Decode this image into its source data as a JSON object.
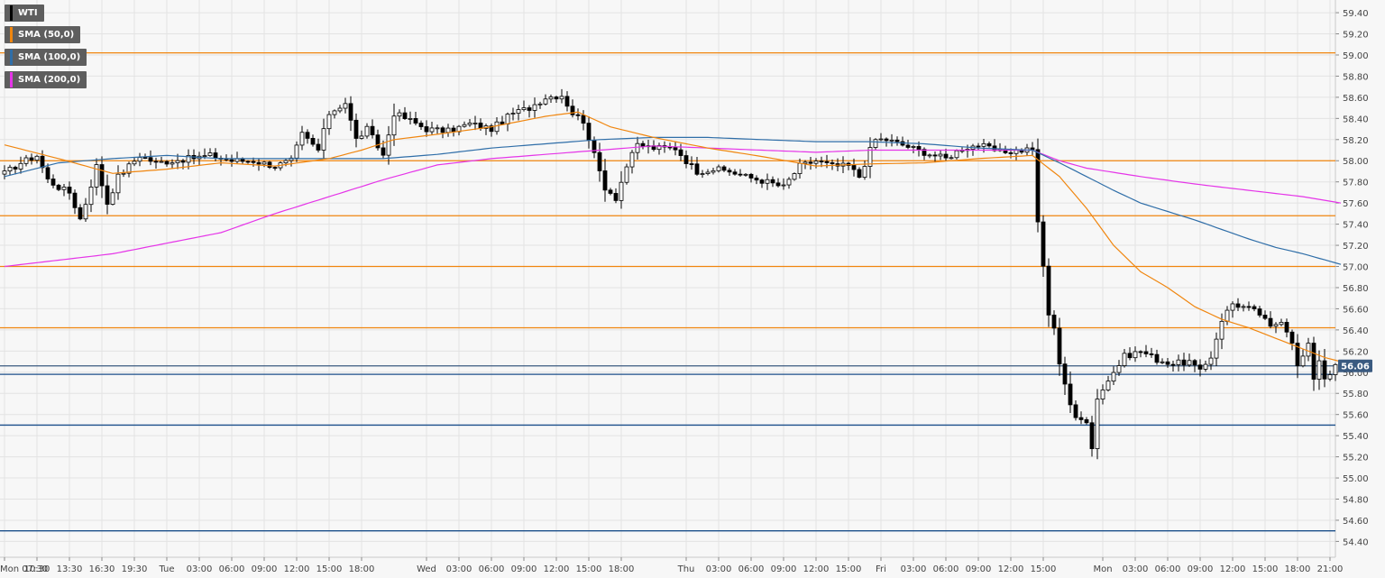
{
  "chart_data": {
    "type": "candlestick",
    "instrument": "WTI",
    "indicators": [
      {
        "name": "SMA (50,0)",
        "color": "#f0860f"
      },
      {
        "name": "SMA (100,0)",
        "color": "#2f6ea8"
      },
      {
        "name": "SMA (200,0)",
        "color": "#e535e8"
      }
    ],
    "ylim": [
      54.25,
      59.52
    ],
    "y_ticks": [
      "59.40",
      "59.20",
      "59.00",
      "58.80",
      "58.60",
      "58.40",
      "58.20",
      "58.00",
      "57.80",
      "57.60",
      "57.40",
      "57.20",
      "57.00",
      "56.80",
      "56.60",
      "56.40",
      "56.20",
      "56.00",
      "55.80",
      "55.60",
      "55.40",
      "55.20",
      "55.00",
      "54.80",
      "54.60",
      "54.40"
    ],
    "x_ticks": [
      {
        "label": "Mon 07:30",
        "bar": 0
      },
      {
        "label": "10:30",
        "bar": 6
      },
      {
        "label": "13:30",
        "bar": 12
      },
      {
        "label": "16:30",
        "bar": 18
      },
      {
        "label": "19:30",
        "bar": 24
      },
      {
        "label": "Tue",
        "bar": 30
      },
      {
        "label": "03:00",
        "bar": 36
      },
      {
        "label": "06:00",
        "bar": 42
      },
      {
        "label": "09:00",
        "bar": 48
      },
      {
        "label": "12:00",
        "bar": 54
      },
      {
        "label": "15:00",
        "bar": 60
      },
      {
        "label": "18:00",
        "bar": 66
      },
      {
        "label": "Wed",
        "bar": 78
      },
      {
        "label": "03:00",
        "bar": 84
      },
      {
        "label": "06:00",
        "bar": 90
      },
      {
        "label": "09:00",
        "bar": 96
      },
      {
        "label": "12:00",
        "bar": 102
      },
      {
        "label": "15:00",
        "bar": 108
      },
      {
        "label": "18:00",
        "bar": 114
      },
      {
        "label": "Thu",
        "bar": 126
      },
      {
        "label": "03:00",
        "bar": 132
      },
      {
        "label": "06:00",
        "bar": 138
      },
      {
        "label": "09:00",
        "bar": 144
      },
      {
        "label": "12:00",
        "bar": 150
      },
      {
        "label": "15:00",
        "bar": 156
      },
      {
        "label": "Fri",
        "bar": 162
      },
      {
        "label": "03:00",
        "bar": 168
      },
      {
        "label": "06:00",
        "bar": 174
      },
      {
        "label": "09:00",
        "bar": 180
      },
      {
        "label": "12:00",
        "bar": 186
      },
      {
        "label": "15:00",
        "bar": 192
      },
      {
        "label": "Mon",
        "bar": 203
      },
      {
        "label": "03:00",
        "bar": 209
      },
      {
        "label": "06:00",
        "bar": 215
      },
      {
        "label": "09:00",
        "bar": 221
      },
      {
        "label": "12:00",
        "bar": 227
      },
      {
        "label": "15:00",
        "bar": 233
      },
      {
        "label": "18:00",
        "bar": 239
      },
      {
        "label": "21:00",
        "bar": 245
      }
    ],
    "bar_count": 248,
    "closes_anchor": [
      [
        0,
        57.88
      ],
      [
        3,
        57.98
      ],
      [
        6,
        58.05
      ],
      [
        8,
        57.82
      ],
      [
        10,
        57.75
      ],
      [
        12,
        57.7
      ],
      [
        14,
        57.45
      ],
      [
        15,
        57.6
      ],
      [
        17,
        57.95
      ],
      [
        19,
        57.6
      ],
      [
        21,
        57.85
      ],
      [
        23,
        57.95
      ],
      [
        25,
        58.05
      ],
      [
        28,
        57.98
      ],
      [
        31,
        58.0
      ],
      [
        34,
        58.02
      ],
      [
        38,
        58.05
      ],
      [
        42,
        58.0
      ],
      [
        46,
        58.0
      ],
      [
        50,
        57.95
      ],
      [
        53,
        58.0
      ],
      [
        55,
        58.25
      ],
      [
        58,
        58.1
      ],
      [
        60,
        58.45
      ],
      [
        63,
        58.55
      ],
      [
        65,
        58.2
      ],
      [
        67,
        58.3
      ],
      [
        70,
        58.05
      ],
      [
        72,
        58.45
      ],
      [
        75,
        58.38
      ],
      [
        78,
        58.3
      ],
      [
        82,
        58.28
      ],
      [
        86,
        58.35
      ],
      [
        90,
        58.3
      ],
      [
        94,
        58.45
      ],
      [
        97,
        58.5
      ],
      [
        100,
        58.6
      ],
      [
        103,
        58.62
      ],
      [
        105,
        58.45
      ],
      [
        107,
        58.38
      ],
      [
        109,
        58.05
      ],
      [
        111,
        57.75
      ],
      [
        113,
        57.65
      ],
      [
        115,
        57.95
      ],
      [
        117,
        58.15
      ],
      [
        120,
        58.12
      ],
      [
        124,
        58.12
      ],
      [
        126,
        58.0
      ],
      [
        128,
        57.9
      ],
      [
        131,
        57.92
      ],
      [
        134,
        57.9
      ],
      [
        137,
        57.85
      ],
      [
        141,
        57.8
      ],
      [
        144,
        57.75
      ],
      [
        147,
        57.95
      ],
      [
        150,
        58.0
      ],
      [
        153,
        57.95
      ],
      [
        156,
        57.95
      ],
      [
        158,
        57.85
      ],
      [
        160,
        58.1
      ],
      [
        161,
        58.2
      ],
      [
        163,
        58.2
      ],
      [
        166,
        58.15
      ],
      [
        170,
        58.08
      ],
      [
        174,
        58.02
      ],
      [
        177,
        58.12
      ],
      [
        180,
        58.15
      ],
      [
        184,
        58.08
      ],
      [
        188,
        58.1
      ],
      [
        190,
        58.12
      ],
      [
        191,
        57.4
      ],
      [
        192,
        57.0
      ],
      [
        193,
        56.55
      ],
      [
        194,
        56.4
      ],
      [
        195,
        56.1
      ],
      [
        196,
        55.9
      ],
      [
        197,
        55.7
      ],
      [
        198,
        55.55
      ],
      [
        200,
        55.55
      ],
      [
        201,
        55.3
      ],
      [
        202,
        55.75
      ],
      [
        203,
        55.85
      ],
      [
        205,
        56.0
      ],
      [
        207,
        56.15
      ],
      [
        210,
        56.2
      ],
      [
        213,
        56.12
      ],
      [
        216,
        56.08
      ],
      [
        219,
        56.1
      ],
      [
        221,
        56.0
      ],
      [
        223,
        56.15
      ],
      [
        225,
        56.5
      ],
      [
        227,
        56.65
      ],
      [
        230,
        56.6
      ],
      [
        232,
        56.55
      ],
      [
        234,
        56.42
      ],
      [
        236,
        56.5
      ],
      [
        238,
        56.3
      ],
      [
        239,
        56.05
      ],
      [
        241,
        56.25
      ],
      [
        242,
        55.95
      ],
      [
        243,
        56.12
      ],
      [
        244,
        55.95
      ],
      [
        246,
        56.05
      ],
      [
        247,
        56.06
      ]
    ],
    "sma_50": [
      [
        0,
        58.15
      ],
      [
        10,
        58.02
      ],
      [
        20,
        57.88
      ],
      [
        30,
        57.92
      ],
      [
        40,
        57.98
      ],
      [
        50,
        57.95
      ],
      [
        60,
        58.02
      ],
      [
        66,
        58.1
      ],
      [
        72,
        58.2
      ],
      [
        80,
        58.25
      ],
      [
        90,
        58.32
      ],
      [
        100,
        58.42
      ],
      [
        106,
        58.46
      ],
      [
        112,
        58.32
      ],
      [
        120,
        58.22
      ],
      [
        130,
        58.12
      ],
      [
        140,
        58.04
      ],
      [
        150,
        57.95
      ],
      [
        160,
        57.97
      ],
      [
        170,
        57.98
      ],
      [
        180,
        58.02
      ],
      [
        190,
        58.05
      ],
      [
        195,
        57.85
      ],
      [
        200,
        57.55
      ],
      [
        205,
        57.2
      ],
      [
        210,
        56.95
      ],
      [
        215,
        56.8
      ],
      [
        220,
        56.62
      ],
      [
        225,
        56.5
      ],
      [
        230,
        56.42
      ],
      [
        235,
        56.32
      ],
      [
        240,
        56.22
      ],
      [
        244,
        56.14
      ],
      [
        247,
        56.1
      ]
    ],
    "sma_100": [
      [
        0,
        57.85
      ],
      [
        10,
        57.98
      ],
      [
        20,
        58.02
      ],
      [
        30,
        58.05
      ],
      [
        40,
        58.02
      ],
      [
        50,
        58.02
      ],
      [
        60,
        58.02
      ],
      [
        70,
        58.02
      ],
      [
        80,
        58.06
      ],
      [
        90,
        58.12
      ],
      [
        100,
        58.16
      ],
      [
        110,
        58.2
      ],
      [
        120,
        58.22
      ],
      [
        130,
        58.22
      ],
      [
        140,
        58.2
      ],
      [
        150,
        58.18
      ],
      [
        160,
        58.18
      ],
      [
        170,
        58.16
      ],
      [
        180,
        58.12
      ],
      [
        190,
        58.1
      ],
      [
        195,
        57.98
      ],
      [
        200,
        57.85
      ],
      [
        205,
        57.72
      ],
      [
        210,
        57.6
      ],
      [
        215,
        57.52
      ],
      [
        220,
        57.44
      ],
      [
        225,
        57.35
      ],
      [
        230,
        57.26
      ],
      [
        235,
        57.18
      ],
      [
        240,
        57.12
      ],
      [
        247,
        57.02
      ]
    ],
    "sma_200": [
      [
        0,
        57.0
      ],
      [
        10,
        57.06
      ],
      [
        20,
        57.12
      ],
      [
        30,
        57.22
      ],
      [
        40,
        57.32
      ],
      [
        50,
        57.5
      ],
      [
        60,
        57.66
      ],
      [
        70,
        57.82
      ],
      [
        80,
        57.96
      ],
      [
        90,
        58.02
      ],
      [
        100,
        58.06
      ],
      [
        110,
        58.1
      ],
      [
        120,
        58.14
      ],
      [
        130,
        58.12
      ],
      [
        140,
        58.1
      ],
      [
        150,
        58.08
      ],
      [
        160,
        58.1
      ],
      [
        170,
        58.1
      ],
      [
        180,
        58.1
      ],
      [
        190,
        58.1
      ],
      [
        195,
        58.0
      ],
      [
        200,
        57.93
      ],
      [
        210,
        57.85
      ],
      [
        220,
        57.78
      ],
      [
        230,
        57.72
      ],
      [
        240,
        57.66
      ],
      [
        247,
        57.6
      ]
    ],
    "horizontal_levels": [
      {
        "value": 59.02,
        "color": "#f0860f"
      },
      {
        "value": 58.0,
        "color": "#f0860f"
      },
      {
        "value": 57.48,
        "color": "#f0860f"
      },
      {
        "value": 57.0,
        "color": "#f0860f"
      },
      {
        "value": 56.42,
        "color": "#f0860f"
      },
      {
        "value": 56.06,
        "color": "#3a5a80"
      },
      {
        "value": 55.98,
        "color": "#1b4f8a"
      },
      {
        "value": 55.5,
        "color": "#1b4f8a"
      },
      {
        "value": 54.5,
        "color": "#1b4f8a"
      }
    ],
    "last_price": {
      "value": 56.06,
      "label": "56.06",
      "color": "#3a5a80"
    },
    "colors": {
      "bull": "#ffffff",
      "bear": "#000000",
      "wick": "#000000",
      "grid": "#e3e3e3",
      "background": "#f7f7f7",
      "text": "#444444",
      "label_bg": "#5e5e5e"
    },
    "grid": true,
    "legend_placement": "top-left"
  }
}
